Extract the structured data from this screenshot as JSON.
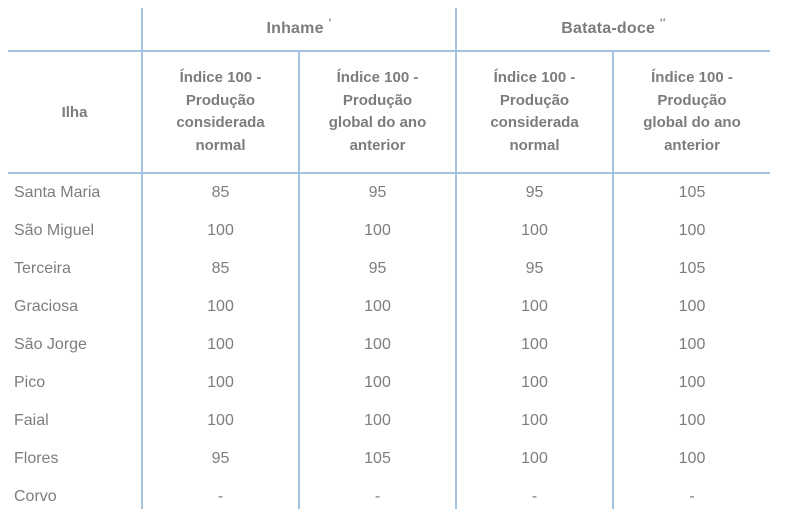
{
  "table": {
    "row_header_label": "Ilha",
    "groups": [
      {
        "label": "Inhame",
        "note": "′"
      },
      {
        "label": "Batata-doce",
        "note": "′′"
      }
    ],
    "sub_headers": [
      "Índice 100 -\nProdução\nconsiderada\nnormal",
      "Índice 100 -\nProdução\nglobal do ano\nanterior",
      "Índice 100 -\nProdução\nconsiderada\nnormal",
      "Índice 100 -\nProdução\nglobal do ano\nanterior"
    ],
    "rows": [
      {
        "island": "Santa Maria",
        "values": [
          "85",
          "95",
          "95",
          "105"
        ]
      },
      {
        "island": "São Miguel",
        "values": [
          "100",
          "100",
          "100",
          "100"
        ]
      },
      {
        "island": "Terceira",
        "values": [
          "85",
          "95",
          "95",
          "105"
        ]
      },
      {
        "island": "Graciosa",
        "values": [
          "100",
          "100",
          "100",
          "100"
        ]
      },
      {
        "island": "São Jorge",
        "values": [
          "100",
          "100",
          "100",
          "100"
        ]
      },
      {
        "island": "Pico",
        "values": [
          "100",
          "100",
          "100",
          "100"
        ]
      },
      {
        "island": "Faial",
        "values": [
          "100",
          "100",
          "100",
          "100"
        ]
      },
      {
        "island": "Flores",
        "values": [
          "95",
          "105",
          "100",
          "100"
        ]
      },
      {
        "island": "Corvo",
        "values": [
          "-",
          "-",
          "-",
          "-"
        ]
      }
    ],
    "colors": {
      "border_blue": "#a5c4e2",
      "text_gray": "#7d7d7d",
      "header_gray": "#7c7c7c",
      "background": "#ffffff"
    }
  }
}
